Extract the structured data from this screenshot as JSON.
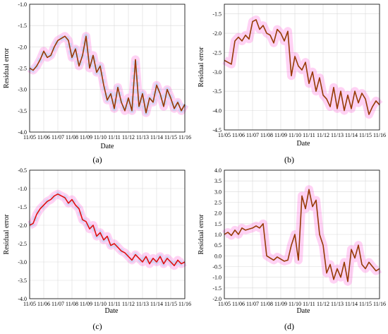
{
  "colors": {
    "band": "#ff33cc",
    "band_alt": "#00e6ff",
    "line": "#7a4a00",
    "line_hi": "#e01010",
    "grid": "#d9d9d9",
    "axis": "#000000"
  },
  "chart_data": [
    {
      "type": "line",
      "panel_label": "(a)",
      "xlabel": "Date",
      "ylabel": "Residual error",
      "x_ticks": [
        "11/05",
        "11/06",
        "11/07",
        "11/08",
        "11/09",
        "11/10",
        "11/11",
        "11/12",
        "11/13",
        "11/14",
        "11/15",
        "11/16"
      ],
      "y_ticks": [
        "-1.0",
        "-1.5",
        "-2.0",
        "-2.5",
        "-3.0",
        "-3.5",
        "-4.0"
      ],
      "ylim": [
        -4.0,
        -1.0
      ],
      "grid": true,
      "series": [
        {
          "x": [
            0.0,
            0.25,
            0.5,
            0.75,
            1.0,
            1.25,
            1.5,
            1.75,
            2.0,
            2.25,
            2.5,
            2.75,
            3.0,
            3.25,
            3.5,
            3.75,
            4.0,
            4.25,
            4.5,
            4.75,
            5.0,
            5.25,
            5.5,
            5.75,
            6.0,
            6.25,
            6.5,
            6.75,
            7.0,
            7.25,
            7.5,
            7.75,
            8.0,
            8.25,
            8.5,
            8.75,
            9.0,
            9.25,
            9.5,
            9.75,
            10.0,
            10.25,
            10.5,
            10.75,
            11.0
          ],
          "y": [
            -2.5,
            -2.55,
            -2.45,
            -2.3,
            -2.1,
            -2.25,
            -2.2,
            -2.0,
            -1.85,
            -1.8,
            -1.75,
            -1.85,
            -2.25,
            -2.05,
            -2.45,
            -2.2,
            -1.75,
            -2.5,
            -2.2,
            -2.6,
            -2.45,
            -2.9,
            -3.25,
            -3.1,
            -3.45,
            -2.95,
            -3.3,
            -3.5,
            -3.2,
            -3.5,
            -2.3,
            -3.4,
            -3.1,
            -3.55,
            -3.2,
            -3.3,
            -2.9,
            -3.1,
            -3.4,
            -3.0,
            -3.2,
            -3.45,
            -3.3,
            -3.5,
            -3.35
          ]
        }
      ]
    },
    {
      "type": "line",
      "panel_label": "(b)",
      "xlabel": "Date",
      "ylabel": "Residual error",
      "x_ticks": [
        "11/05",
        "11/06",
        "11/07",
        "11/08",
        "11/09",
        "11/10",
        "11/11",
        "11/12",
        "11/13",
        "11/14",
        "11/15",
        "11/16"
      ],
      "y_ticks": [
        "-1.5",
        "-2.0",
        "-2.5",
        "-3.0",
        "-3.5",
        "-4.0",
        "-4.5"
      ],
      "ylim": [
        -4.5,
        -1.25
      ],
      "grid": true,
      "series": [
        {
          "x": [
            0.0,
            0.25,
            0.5,
            0.75,
            1.0,
            1.25,
            1.5,
            1.75,
            2.0,
            2.25,
            2.5,
            2.75,
            3.0,
            3.25,
            3.5,
            3.75,
            4.0,
            4.25,
            4.5,
            4.75,
            5.0,
            5.25,
            5.5,
            5.75,
            6.0,
            6.25,
            6.5,
            6.75,
            7.0,
            7.25,
            7.5,
            7.75,
            8.0,
            8.25,
            8.5,
            8.75,
            9.0,
            9.25,
            9.5,
            9.75,
            10.0,
            10.25,
            10.5,
            10.75,
            11.0
          ],
          "y": [
            -2.7,
            -2.75,
            -2.8,
            -2.2,
            -2.1,
            -2.2,
            -2.05,
            -2.15,
            -1.7,
            -1.65,
            -1.9,
            -1.8,
            -2.0,
            -2.05,
            -2.25,
            -1.9,
            -2.0,
            -2.2,
            -1.95,
            -3.1,
            -2.6,
            -2.85,
            -2.95,
            -2.75,
            -3.3,
            -3.0,
            -3.5,
            -3.15,
            -3.6,
            -3.7,
            -3.9,
            -3.4,
            -3.95,
            -3.5,
            -4.0,
            -3.6,
            -3.95,
            -3.5,
            -3.8,
            -3.55,
            -3.7,
            -4.1,
            -3.9,
            -3.75,
            -3.85
          ]
        }
      ]
    },
    {
      "type": "line",
      "panel_label": "(c)",
      "xlabel": "Date",
      "ylabel": "Residual error",
      "x_ticks": [
        "11/05",
        "11/06",
        "11/07",
        "11/08",
        "11/09",
        "11/10",
        "11/11",
        "11/12",
        "11/13",
        "11/14",
        "11/15",
        "11/16"
      ],
      "y_ticks": [
        "-0.5",
        "-1.0",
        "-1.5",
        "-2.0",
        "-2.5",
        "-3.0",
        "-3.5",
        "-4.0"
      ],
      "ylim": [
        -4.0,
        -0.5
      ],
      "grid": true,
      "series": [
        {
          "x": [
            0.0,
            0.25,
            0.5,
            0.75,
            1.0,
            1.25,
            1.5,
            1.75,
            2.0,
            2.25,
            2.5,
            2.75,
            3.0,
            3.25,
            3.5,
            3.75,
            4.0,
            4.25,
            4.5,
            4.75,
            5.0,
            5.25,
            5.5,
            5.75,
            6.0,
            6.25,
            6.5,
            6.75,
            7.0,
            7.25,
            7.5,
            7.75,
            8.0,
            8.25,
            8.5,
            8.75,
            9.0,
            9.25,
            9.5,
            9.75,
            10.0,
            10.25,
            10.5,
            10.75,
            11.0
          ],
          "y": [
            -2.0,
            -1.95,
            -1.7,
            -1.55,
            -1.45,
            -1.35,
            -1.3,
            -1.2,
            -1.15,
            -1.2,
            -1.25,
            -1.4,
            -1.3,
            -1.45,
            -1.55,
            -1.85,
            -1.9,
            -2.1,
            -2.0,
            -2.3,
            -2.2,
            -2.4,
            -2.3,
            -2.55,
            -2.5,
            -2.6,
            -2.7,
            -2.75,
            -2.85,
            -2.95,
            -2.8,
            -2.9,
            -3.0,
            -2.85,
            -3.05,
            -2.9,
            -3.0,
            -2.85,
            -3.05,
            -2.9,
            -3.0,
            -3.1,
            -2.95,
            -3.05,
            -3.0
          ]
        }
      ]
    },
    {
      "type": "line",
      "panel_label": "(d)",
      "xlabel": "Date",
      "ylabel": "Residual error",
      "x_ticks": [
        "11/05",
        "11/06",
        "11/07",
        "11/08",
        "11/09",
        "11/10",
        "11/11",
        "11/12",
        "11/13",
        "11/14",
        "11/15",
        "11/16"
      ],
      "y_ticks": [
        "4.0",
        "3.5",
        "3.0",
        "2.5",
        "2.0",
        "1.5",
        "1.0",
        "0.5",
        "0.0",
        "-0.5",
        "-1.0",
        "-1.5",
        "-2.0"
      ],
      "ylim": [
        -2.0,
        4.0
      ],
      "grid": true,
      "series": [
        {
          "x": [
            0.0,
            0.25,
            0.5,
            0.75,
            1.0,
            1.25,
            1.5,
            1.75,
            2.0,
            2.25,
            2.5,
            2.75,
            3.0,
            3.25,
            3.5,
            3.75,
            4.0,
            4.25,
            4.5,
            4.75,
            5.0,
            5.25,
            5.5,
            5.75,
            6.0,
            6.25,
            6.5,
            6.75,
            7.0,
            7.25,
            7.5,
            7.75,
            8.0,
            8.25,
            8.5,
            8.75,
            9.0,
            9.25,
            9.5,
            9.75,
            10.0,
            10.25,
            10.5,
            10.75,
            11.0
          ],
          "y": [
            1.0,
            1.1,
            0.95,
            1.2,
            1.0,
            1.3,
            1.2,
            1.25,
            1.3,
            1.4,
            1.3,
            1.5,
            0.0,
            -0.1,
            -0.2,
            -0.05,
            -0.15,
            -0.25,
            -0.2,
            0.5,
            1.0,
            -0.2,
            2.8,
            2.2,
            3.1,
            2.3,
            2.6,
            1.0,
            0.5,
            -0.8,
            -0.4,
            -1.1,
            -0.6,
            -1.0,
            -0.3,
            -1.2,
            0.3,
            -0.1,
            0.5,
            -0.4,
            -0.6,
            -0.3,
            -0.5,
            -0.7,
            -0.6
          ]
        }
      ]
    }
  ]
}
